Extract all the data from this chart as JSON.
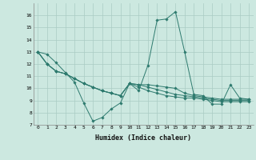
{
  "xlabel": "Humidex (Indice chaleur)",
  "background_color": "#cce8e0",
  "grid_color": "#aaccc4",
  "line_color": "#2d7a6e",
  "xlim": [
    -0.5,
    23.5
  ],
  "ylim": [
    7,
    17
  ],
  "xticks": [
    0,
    1,
    2,
    3,
    4,
    5,
    6,
    7,
    8,
    9,
    10,
    11,
    12,
    13,
    14,
    15,
    16,
    17,
    18,
    19,
    20,
    21,
    22,
    23
  ],
  "yticks": [
    7,
    8,
    9,
    10,
    11,
    12,
    13,
    14,
    15,
    16
  ],
  "series": [
    [
      13.0,
      12.8,
      12.1,
      11.3,
      10.5,
      8.8,
      7.3,
      7.6,
      8.3,
      8.8,
      10.4,
      9.8,
      11.9,
      15.6,
      15.7,
      16.3,
      13.0,
      9.5,
      9.4,
      8.7,
      8.7,
      10.3,
      9.2,
      9.1
    ],
    [
      13.0,
      12.0,
      11.4,
      11.2,
      10.8,
      10.4,
      10.1,
      9.8,
      9.6,
      9.4,
      10.4,
      10.3,
      10.3,
      10.2,
      10.1,
      10.0,
      9.6,
      9.4,
      9.3,
      9.2,
      9.1,
      9.1,
      9.1,
      9.1
    ],
    [
      13.0,
      12.0,
      11.4,
      11.2,
      10.8,
      10.4,
      10.1,
      9.8,
      9.6,
      9.4,
      10.4,
      10.3,
      10.1,
      9.9,
      9.7,
      9.5,
      9.4,
      9.3,
      9.2,
      9.1,
      9.0,
      9.0,
      9.0,
      9.0
    ],
    [
      13.0,
      12.0,
      11.4,
      11.2,
      10.8,
      10.4,
      10.1,
      9.8,
      9.6,
      9.4,
      10.4,
      10.1,
      9.8,
      9.6,
      9.4,
      9.3,
      9.2,
      9.2,
      9.1,
      9.0,
      8.9,
      8.9,
      8.9,
      8.9
    ]
  ]
}
